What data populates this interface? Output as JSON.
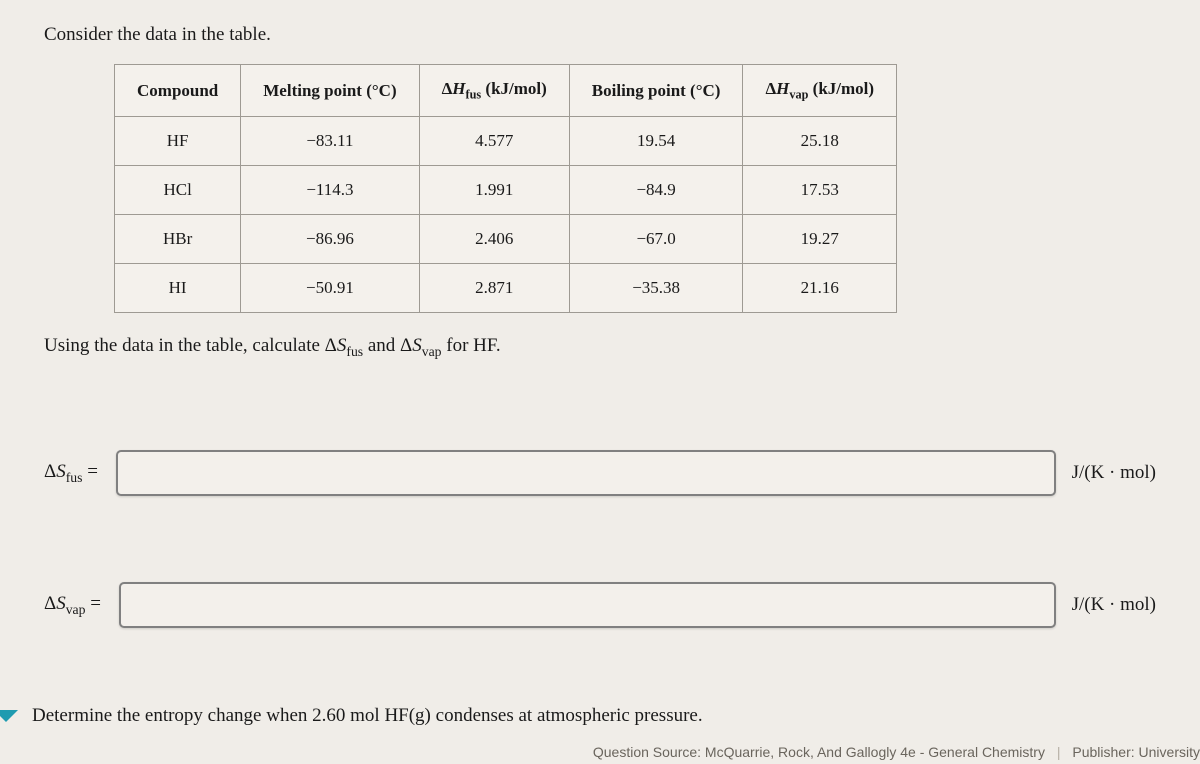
{
  "intro": "Consider the data in the table.",
  "table": {
    "headers": {
      "compound": "Compound",
      "mp": "Melting point (°C)",
      "hfus_pre": "Δ",
      "hfus_ital": "H",
      "hfus_sub": "fus",
      "hfus_post": " (kJ/mol)",
      "bp": "Boiling point (°C)",
      "hvap_pre": "Δ",
      "hvap_ital": "H",
      "hvap_sub": "vap",
      "hvap_post": " (kJ/mol)"
    },
    "rows": [
      {
        "compound": "HF",
        "mp": "−83.11",
        "hfus": "4.577",
        "bp": "19.54",
        "hvap": "25.18"
      },
      {
        "compound": "HCl",
        "mp": "−114.3",
        "hfus": "1.991",
        "bp": "−84.9",
        "hvap": "17.53"
      },
      {
        "compound": "HBr",
        "mp": "−86.96",
        "hfus": "2.406",
        "bp": "−67.0",
        "hvap": "19.27"
      },
      {
        "compound": "HI",
        "mp": "−50.91",
        "hfus": "2.871",
        "bp": "−35.38",
        "hvap": "21.16"
      }
    ]
  },
  "prompt": {
    "pre": "Using the data in the table, calculate Δ",
    "s1_ital": "S",
    "s1_sub": "fus",
    "mid": " and Δ",
    "s2_ital": "S",
    "s2_sub": "vap",
    "post": " for HF."
  },
  "answers": {
    "fus": {
      "delta": "Δ",
      "ital": "S",
      "sub": "fus",
      "eq": " =",
      "unit": "J/(K · mol)"
    },
    "vap": {
      "delta": "Δ",
      "ital": "S",
      "sub": "vap",
      "eq": " =",
      "unit": "J/(K · mol)"
    }
  },
  "q3": "Determine the entropy change when 2.60 mol HF(g) condenses at atmospheric pressure.",
  "footer": {
    "source_label": "Question Source:",
    "source_value": " McQuarrie, Rock, And Gallogly 4e - General Chemistry",
    "pub_label": "Publisher:",
    "pub_value": " University"
  }
}
